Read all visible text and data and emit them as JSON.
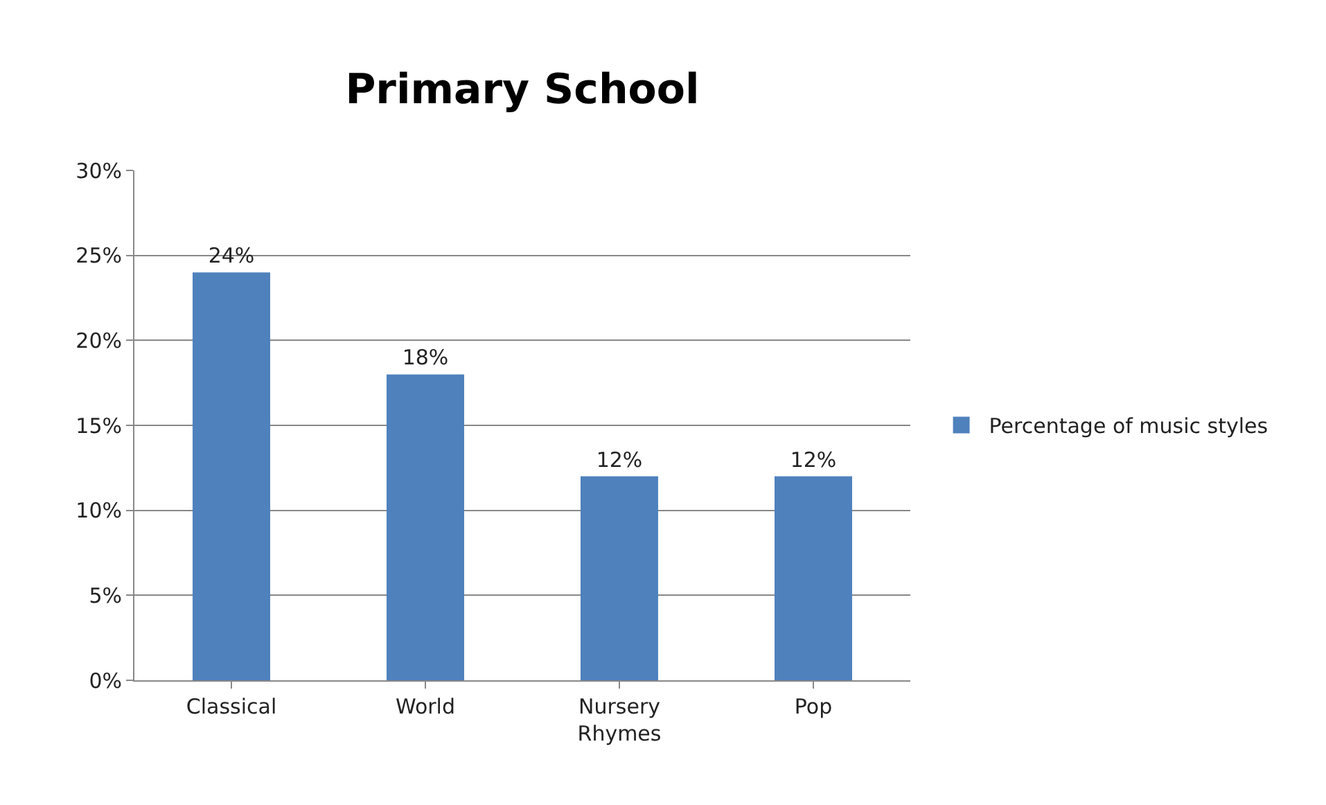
{
  "chart_data": {
    "type": "bar",
    "title": "Primary School",
    "categories": [
      "Classical",
      "World",
      "Nursery Rhymes",
      "Pop"
    ],
    "series": [
      {
        "name": "Percentage of music styles",
        "color": "#4f81bd",
        "values": [
          24,
          18,
          12,
          12
        ],
        "value_labels": [
          "24%",
          "18%",
          "12%",
          "12%"
        ]
      }
    ],
    "ylim": [
      0,
      30
    ],
    "yticks": [
      {
        "value": 0,
        "label": "0%"
      },
      {
        "value": 5,
        "label": "5%"
      },
      {
        "value": 10,
        "label": "10%"
      },
      {
        "value": 15,
        "label": "15%"
      },
      {
        "value": 20,
        "label": "20%"
      },
      {
        "value": 25,
        "label": "25%"
      },
      {
        "value": 30,
        "label": "30%"
      }
    ],
    "grid": "y",
    "legend": "right"
  }
}
